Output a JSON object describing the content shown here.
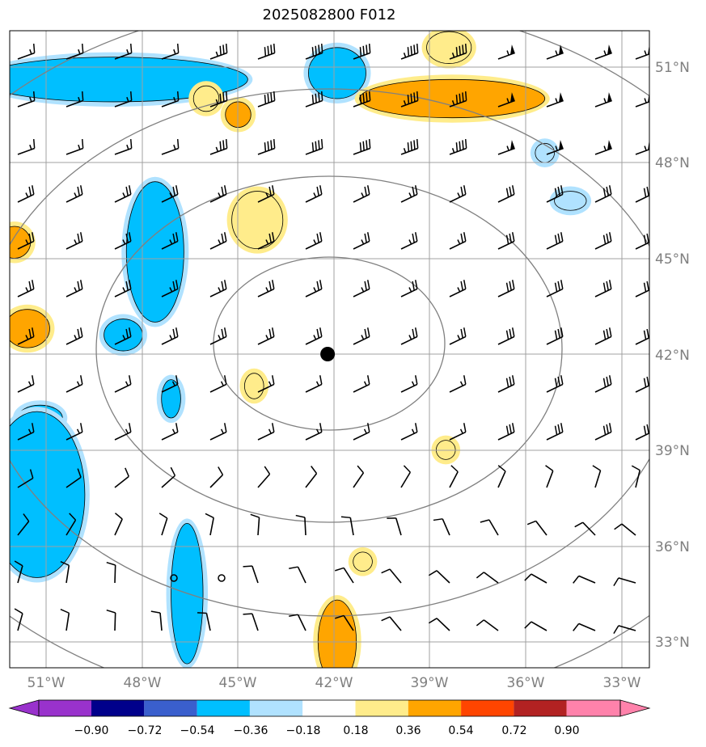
{
  "title": "2025082800 F012",
  "lon_labels": [
    "51°W",
    "48°W",
    "45°W",
    "42°W",
    "39°W",
    "36°W",
    "33°W"
  ],
  "lat_labels": [
    "51°N",
    "48°N",
    "45°N",
    "42°N",
    "39°N",
    "36°N",
    "33°N"
  ],
  "colorbar": {
    "colors": [
      "#9932cc",
      "#00008b",
      "#3a5fcd",
      "#00bfff",
      "#b0e2ff",
      "#ffffff",
      "#ffec8b",
      "#ffa500",
      "#ff4500",
      "#b22222",
      "#ff82ab"
    ],
    "tick_labels": [
      "−0.90",
      "−0.72",
      "−0.54",
      "−0.36",
      "−0.18",
      "0.18",
      "0.36",
      "0.54",
      "0.72",
      "0.90"
    ]
  },
  "center_marker": {
    "lon": -42.2,
    "lat": 42.0,
    "color": "#000000"
  },
  "range_rings_count": 4,
  "shaded_areas": [
    {
      "lat": 50.6,
      "lon": -48.9,
      "rx": 4.2,
      "ry": 0.7,
      "fill": "#00bfff",
      "halo": "#b0e2ff"
    },
    {
      "lat": 50.8,
      "lon": -41.9,
      "rx": 0.9,
      "ry": 0.8,
      "fill": "#00bfff",
      "halo": "#b0e2ff"
    },
    {
      "lat": 45.2,
      "lon": -47.6,
      "rx": 0.9,
      "ry": 2.2,
      "fill": "#00bfff",
      "halo": "#b0e2ff"
    },
    {
      "lat": 42.6,
      "lon": -48.6,
      "rx": 0.6,
      "ry": 0.5,
      "fill": "#00bfff",
      "halo": "#b0e2ff"
    },
    {
      "lat": 40.6,
      "lon": -47.1,
      "rx": 0.3,
      "ry": 0.6,
      "fill": "#00bfff",
      "halo": "#b0e2ff"
    },
    {
      "lat": 40.0,
      "lon": -51.2,
      "rx": 0.7,
      "ry": 0.4,
      "fill": "#00bfff",
      "halo": "#b0e2ff"
    },
    {
      "lat": 37.6,
      "lon": -51.3,
      "rx": 1.5,
      "ry": 2.6,
      "fill": "#00bfff",
      "halo": "#b0e2ff"
    },
    {
      "lat": 34.5,
      "lon": -46.6,
      "rx": 0.5,
      "ry": 2.2,
      "fill": "#00bfff",
      "halo": "#b0e2ff"
    },
    {
      "lat": 48.3,
      "lon": -35.4,
      "rx": 0.3,
      "ry": 0.3,
      "fill": "#b0e2ff",
      "halo": "#b0e2ff"
    },
    {
      "lat": 46.8,
      "lon": -34.6,
      "rx": 0.5,
      "ry": 0.3,
      "fill": "#b0e2ff",
      "halo": "#b0e2ff"
    },
    {
      "lat": 51.6,
      "lon": -38.4,
      "rx": 0.7,
      "ry": 0.5,
      "fill": "#ffec8b",
      "halo": "#ffec8b"
    },
    {
      "lat": 50.0,
      "lon": -38.3,
      "rx": 2.9,
      "ry": 0.6,
      "fill": "#ffa500",
      "halo": "#ffec8b"
    },
    {
      "lat": 50.0,
      "lon": -46.0,
      "rx": 0.4,
      "ry": 0.4,
      "fill": "#ffec8b",
      "halo": "#ffec8b"
    },
    {
      "lat": 49.5,
      "lon": -45.0,
      "rx": 0.4,
      "ry": 0.4,
      "fill": "#ffa500",
      "halo": "#ffec8b"
    },
    {
      "lat": 46.2,
      "lon": -44.4,
      "rx": 0.8,
      "ry": 0.9,
      "fill": "#ffec8b",
      "halo": "#ffec8b"
    },
    {
      "lat": 45.5,
      "lon": -52.0,
      "rx": 0.5,
      "ry": 0.5,
      "fill": "#ffa500",
      "halo": "#ffec8b"
    },
    {
      "lat": 42.8,
      "lon": -51.6,
      "rx": 0.7,
      "ry": 0.6,
      "fill": "#ffa500",
      "halo": "#ffec8b"
    },
    {
      "lat": 41.0,
      "lon": -44.5,
      "rx": 0.3,
      "ry": 0.4,
      "fill": "#ffec8b",
      "halo": "#ffec8b"
    },
    {
      "lat": 39.0,
      "lon": -38.5,
      "rx": 0.3,
      "ry": 0.3,
      "fill": "#ffec8b",
      "halo": "#ffec8b"
    },
    {
      "lat": 35.5,
      "lon": -41.1,
      "rx": 0.3,
      "ry": 0.3,
      "fill": "#ffec8b",
      "halo": "#ffec8b"
    },
    {
      "lat": 33.0,
      "lon": -41.9,
      "rx": 0.6,
      "ry": 1.3,
      "fill": "#ffa500",
      "halo": "#ffec8b"
    }
  ]
}
